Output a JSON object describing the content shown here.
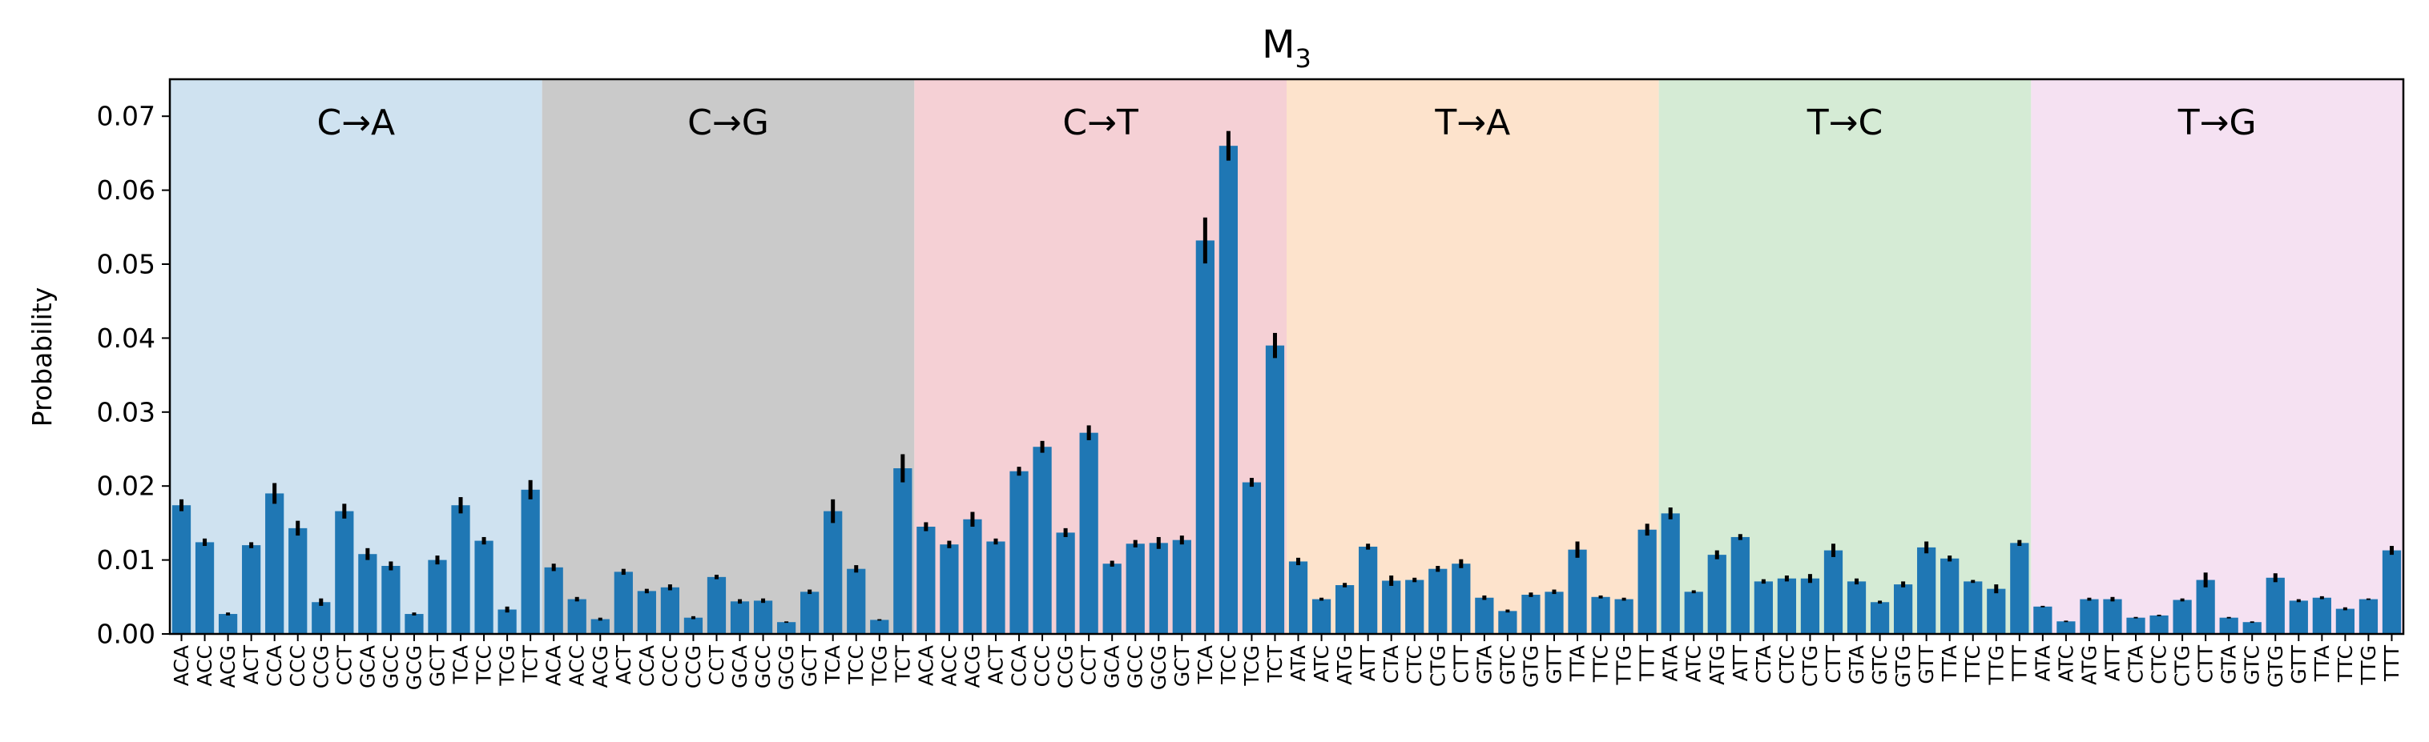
{
  "chart_data": {
    "type": "bar",
    "title_main": "M",
    "title_sub": "3",
    "ylabel": "Probability",
    "ylim": [
      0,
      0.075
    ],
    "yticks": [
      "0.00",
      "0.01",
      "0.02",
      "0.03",
      "0.04",
      "0.05",
      "0.06",
      "0.07"
    ],
    "bar_color": "#1f77b4",
    "groups": [
      {
        "label": "C→A",
        "color": "#cfe2f0",
        "categories": [
          "ACA",
          "ACC",
          "ACG",
          "ACT",
          "CCA",
          "CCC",
          "CCG",
          "CCT",
          "GCA",
          "GCC",
          "GCG",
          "GCT",
          "TCA",
          "TCC",
          "TCG",
          "TCT"
        ],
        "values": [
          0.0174,
          0.0124,
          0.0027,
          0.012,
          0.019,
          0.0143,
          0.0043,
          0.0166,
          0.0108,
          0.0092,
          0.0027,
          0.01,
          0.0174,
          0.0126,
          0.0033,
          0.0195
        ],
        "errors": [
          0.0008,
          0.0005,
          0.0002,
          0.0004,
          0.0014,
          0.001,
          0.0005,
          0.001,
          0.0008,
          0.0006,
          0.0002,
          0.0006,
          0.0011,
          0.0005,
          0.0004,
          0.0013
        ]
      },
      {
        "label": "C→G",
        "color": "#cacaca",
        "categories": [
          "ACA",
          "ACC",
          "ACG",
          "ACT",
          "CCA",
          "CCC",
          "CCG",
          "CCT",
          "GCA",
          "GCC",
          "GCG",
          "GCT",
          "TCA",
          "TCC",
          "TCG",
          "TCT"
        ],
        "values": [
          0.009,
          0.0047,
          0.002,
          0.0084,
          0.0058,
          0.0063,
          0.0022,
          0.0077,
          0.0044,
          0.0045,
          0.0016,
          0.0057,
          0.0166,
          0.0088,
          0.0019,
          0.0224
        ],
        "errors": [
          0.0005,
          0.0003,
          0.0002,
          0.0004,
          0.0003,
          0.0004,
          0.0002,
          0.0003,
          0.0003,
          0.0003,
          0.0001,
          0.0003,
          0.0016,
          0.0005,
          0.0001,
          0.0019
        ]
      },
      {
        "label": "C→T",
        "color": "#f5d0d5",
        "categories": [
          "ACA",
          "ACC",
          "ACG",
          "ACT",
          "CCA",
          "CCC",
          "CCG",
          "CCT",
          "GCA",
          "GCC",
          "GCG",
          "GCT",
          "TCA",
          "TCC",
          "TCG",
          "TCT"
        ],
        "values": [
          0.0145,
          0.0121,
          0.0155,
          0.0125,
          0.022,
          0.0253,
          0.0137,
          0.0272,
          0.0095,
          0.0122,
          0.0123,
          0.0127,
          0.0532,
          0.066,
          0.0205,
          0.039
        ],
        "errors": [
          0.0006,
          0.0005,
          0.001,
          0.0004,
          0.0006,
          0.0008,
          0.0006,
          0.001,
          0.0004,
          0.0005,
          0.0008,
          0.0006,
          0.0031,
          0.002,
          0.0006,
          0.0017
        ]
      },
      {
        "label": "T→A",
        "color": "#fde3cc",
        "categories": [
          "ATA",
          "ATC",
          "ATG",
          "ATT",
          "CTA",
          "CTC",
          "CTG",
          "CTT",
          "GTA",
          "GTC",
          "GTG",
          "GTT",
          "TTA",
          "TTC",
          "TTG",
          "TTT"
        ],
        "values": [
          0.0098,
          0.0047,
          0.0066,
          0.0118,
          0.0072,
          0.0073,
          0.0088,
          0.0095,
          0.0049,
          0.0031,
          0.0053,
          0.0057,
          0.0114,
          0.005,
          0.0047,
          0.0141
        ],
        "errors": [
          0.0005,
          0.0002,
          0.0003,
          0.0004,
          0.0007,
          0.0003,
          0.0004,
          0.0006,
          0.0003,
          0.0002,
          0.0003,
          0.0003,
          0.0011,
          0.0002,
          0.0002,
          0.0008
        ]
      },
      {
        "label": "T→C",
        "color": "#d5ebd5",
        "categories": [
          "ATA",
          "ATC",
          "ATG",
          "ATT",
          "CTA",
          "CTC",
          "CTG",
          "CTT",
          "GTA",
          "GTC",
          "GTG",
          "GTT",
          "TTA",
          "TTC",
          "TTG",
          "TTT"
        ],
        "values": [
          0.0163,
          0.0057,
          0.0107,
          0.0131,
          0.0071,
          0.0075,
          0.0075,
          0.0113,
          0.0071,
          0.0043,
          0.0067,
          0.0117,
          0.0102,
          0.0071,
          0.0061,
          0.0123
        ],
        "errors": [
          0.0008,
          0.0002,
          0.0006,
          0.0004,
          0.0003,
          0.0004,
          0.0006,
          0.0009,
          0.0004,
          0.0002,
          0.0004,
          0.0008,
          0.0004,
          0.0002,
          0.0006,
          0.0004
        ]
      },
      {
        "label": "T→G",
        "color": "#f5e1f2",
        "categories": [
          "ATA",
          "ATC",
          "ATG",
          "ATT",
          "CTA",
          "CTC",
          "CTG",
          "CTT",
          "GTA",
          "GTC",
          "GTG",
          "GTT",
          "TTA",
          "TTC",
          "TTG",
          "TTT"
        ],
        "values": [
          0.0037,
          0.0017,
          0.0047,
          0.0047,
          0.0022,
          0.0025,
          0.0046,
          0.0073,
          0.0022,
          0.0016,
          0.0076,
          0.0045,
          0.0049,
          0.0034,
          0.0047,
          0.0113
        ],
        "errors": [
          0.0001,
          0.0001,
          0.0002,
          0.0003,
          0.0001,
          0.0001,
          0.0002,
          0.001,
          0.0001,
          0.0001,
          0.0006,
          0.0002,
          0.0002,
          0.0002,
          0.0001,
          0.0006
        ]
      }
    ]
  }
}
